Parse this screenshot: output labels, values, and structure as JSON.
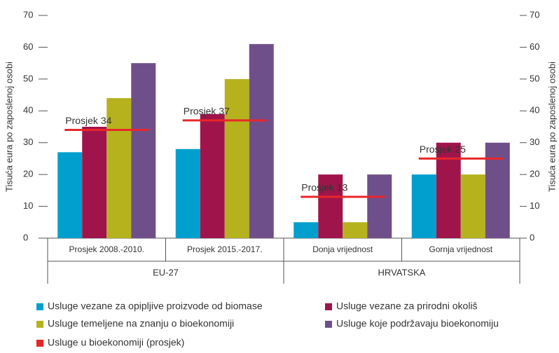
{
  "chart_data": {
    "type": "bar",
    "y_label": "Tisuća eura po zaposlenoj osobi",
    "categories": [
      "Prosjek 2008.-2010.",
      "Prosjek 2015.-2017.",
      "Donja vrijednost",
      "Gornja vrijednost"
    ],
    "groups": [
      "EU-27",
      "HRVATSKA"
    ],
    "series": [
      {
        "name": "Usluge vezane za opipljive proizvode od biomase",
        "color": "#009fce",
        "values": [
          27,
          28,
          5,
          20
        ]
      },
      {
        "name": "Usluge vezane za prirodni okoliš",
        "color": "#a0144c",
        "values": [
          35,
          39,
          20,
          30
        ]
      },
      {
        "name": "Usluge temeljene na znanju o bioekonomiji",
        "color": "#b5b21e",
        "values": [
          44,
          50,
          5,
          20
        ]
      },
      {
        "name": "Usluge koje podržavaju bioekonomiju",
        "color": "#6f4f8a",
        "values": [
          55,
          61,
          20,
          30
        ]
      },
      {
        "name": "Usluge u bioekonomiji (prosjek)",
        "color": "#e8262a",
        "type": "line",
        "values": [
          34,
          37,
          13,
          25
        ],
        "value_labels": [
          "Prosjek 34",
          "Prosjek 37",
          "Prosjek 13",
          "Prosjek 25"
        ]
      }
    ],
    "ylim": [
      0,
      70
    ],
    "yticks": [
      0,
      10,
      20,
      30,
      40,
      50,
      60,
      70
    ],
    "y2lim": [
      0,
      70
    ],
    "y2ticks": [
      0,
      10,
      20,
      30,
      40,
      50,
      60,
      70
    ]
  }
}
